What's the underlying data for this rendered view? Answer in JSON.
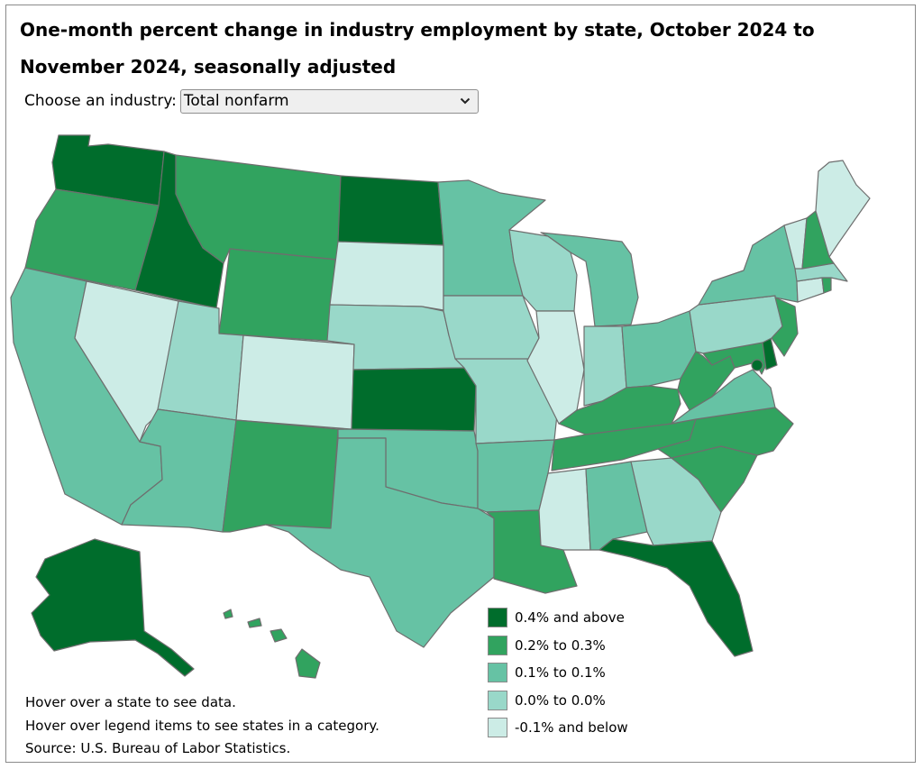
{
  "title": "One-month percent change in industry employment by state, October 2024 to November 2024, seasonally adjusted",
  "industry_select": {
    "label": "Choose an industry:",
    "selected": "Total nonfarm",
    "icon": "chevron-down-icon"
  },
  "colors": {
    "c4": "#006d2c",
    "c3": "#31a35f",
    "c2": "#66c2a4",
    "c1": "#99d8c9",
    "c0": "#ccece6",
    "border": "#6e6e6e"
  },
  "legend": [
    {
      "label": "0.4% and above",
      "category": "c4"
    },
    {
      "label": "0.2% to 0.3%",
      "category": "c3"
    },
    {
      "label": "0.1% to 0.1%",
      "category": "c2"
    },
    {
      "label": "0.0% to 0.0%",
      "category": "c1"
    },
    {
      "label": "-0.1% and below",
      "category": "c0"
    }
  ],
  "notes": [
    "Hover over a state to see data.",
    "Hover over legend items to see states in a category.",
    "Source: U.S. Bureau of Labor Statistics."
  ],
  "states": {
    "WA": "c4",
    "OR": "c3",
    "CA": "c2",
    "NV": "c0",
    "ID": "c4",
    "MT": "c3",
    "WY": "c3",
    "UT": "c1",
    "AZ": "c2",
    "CO": "c0",
    "NM": "c3",
    "ND": "c4",
    "SD": "c0",
    "NE": "c1",
    "KS": "c4",
    "OK": "c2",
    "TX": "c2",
    "MN": "c2",
    "IA": "c1",
    "MO": "c1",
    "AR": "c2",
    "LA": "c3",
    "WI": "c1",
    "IL": "c0",
    "MI": "c2",
    "IN": "c1",
    "OH": "c2",
    "KY": "c3",
    "TN": "c3",
    "MS": "c0",
    "AL": "c2",
    "GA": "c1",
    "FL": "c4",
    "SC": "c3",
    "NC": "c3",
    "VA": "c2",
    "WV": "c3",
    "MD": "c3",
    "DE": "c4",
    "DC": "c4",
    "PA": "c1",
    "NJ": "c3",
    "NY": "c2",
    "CT": "c0",
    "RI": "c3",
    "MA": "c1",
    "VT": "c0",
    "NH": "c3",
    "ME": "c0",
    "AK": "c4",
    "HI": "c3"
  }
}
